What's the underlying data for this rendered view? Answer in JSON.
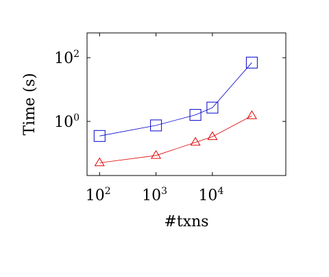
{
  "chart_data": {
    "type": "line",
    "title": "",
    "xlabel": "#txns",
    "ylabel": "Time (s)",
    "xscale": "log",
    "yscale": "log",
    "xlim": [
      60,
      200000
    ],
    "ylim": [
      0.02,
      600
    ],
    "grid": false,
    "x_ticks": [
      {
        "value": 100,
        "base": "10",
        "exp": "2"
      },
      {
        "value": 1000,
        "base": "10",
        "exp": "3"
      },
      {
        "value": 10000,
        "base": "10",
        "exp": "4"
      }
    ],
    "y_ticks": [
      {
        "value": 1,
        "base": "10",
        "exp": "0"
      },
      {
        "value": 100,
        "base": "10",
        "exp": "2"
      }
    ],
    "series": [
      {
        "color": "#0000cc",
        "marker": "square",
        "x": [
          100,
          1000,
          5000,
          10000,
          50000
        ],
        "y": [
          0.35,
          0.75,
          1.6,
          2.7,
          70
        ]
      },
      {
        "color": "#dd0000",
        "marker": "triangle",
        "x": [
          100,
          1000,
          5000,
          10000,
          50000
        ],
        "y": [
          0.05,
          0.085,
          0.22,
          0.33,
          1.5
        ]
      }
    ]
  }
}
